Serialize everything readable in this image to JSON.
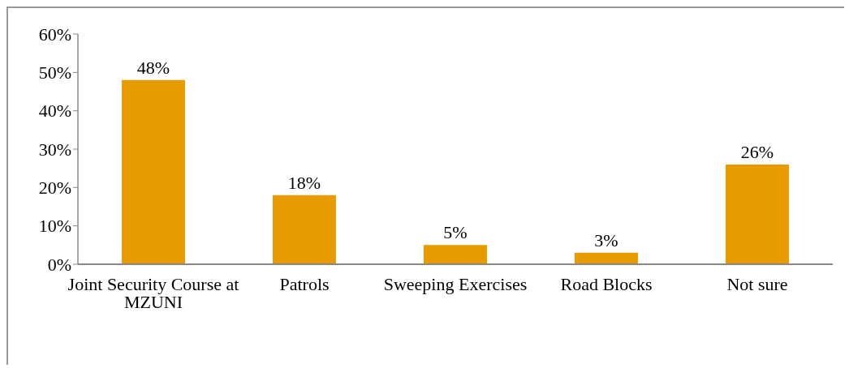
{
  "chart_data": {
    "type": "bar",
    "categories": [
      "Joint Security Course at MZUNI",
      "Patrols",
      "Sweeping Exercises",
      "Road Blocks",
      "Not sure"
    ],
    "values": [
      48,
      18,
      5,
      3,
      26
    ],
    "value_labels": [
      "48%",
      "18%",
      "5%",
      "3%",
      "26%"
    ],
    "color": "#e69b00",
    "ylim": [
      0,
      60
    ],
    "yticks": [
      {
        "value": 0,
        "label": "0%"
      },
      {
        "value": 10,
        "label": "10%"
      },
      {
        "value": 20,
        "label": "20%"
      },
      {
        "value": 30,
        "label": "30%"
      },
      {
        "value": 40,
        "label": "40%"
      },
      {
        "value": 50,
        "label": "50%"
      },
      {
        "value": 60,
        "label": "60%"
      }
    ],
    "grid": false,
    "legend": false
  }
}
